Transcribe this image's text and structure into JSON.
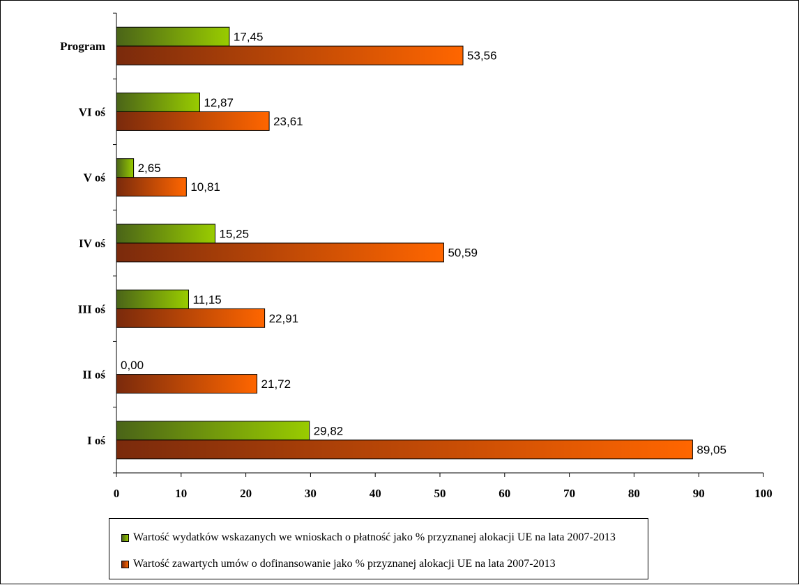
{
  "chart_data": {
    "type": "bar",
    "orientation": "horizontal",
    "categories": [
      "Program",
      "VI oś",
      "V oś",
      "IV oś",
      "III oś",
      "II oś",
      "I oś"
    ],
    "series": [
      {
        "name": "Wartość wydatków wskazanych we wnioskach o płatność jako % przyznanej alokacji UE na lata 2007-2013",
        "values": [
          17.45,
          12.87,
          2.65,
          15.25,
          11.15,
          0.0,
          29.82
        ],
        "labels": [
          "17,45",
          "12,87",
          "2,65",
          "15,25",
          "11,15",
          "0,00",
          "29,82"
        ],
        "color_start": "#4a6418",
        "color_end": "#99cc00"
      },
      {
        "name": "Wartość zawartych umów o dofinansowanie jako % przyznanej alokacji UE na lata 2007-2013",
        "values": [
          53.56,
          23.61,
          10.81,
          50.59,
          22.91,
          21.72,
          89.05
        ],
        "labels": [
          "53,56",
          "23,61",
          "10,81",
          "50,59",
          "22,91",
          "21,72",
          "89,05"
        ],
        "color_start": "#7a2a0c",
        "color_end": "#ff6600"
      }
    ],
    "xlim": [
      0,
      100
    ],
    "xticks": [
      0,
      10,
      20,
      30,
      40,
      50,
      60,
      70,
      80,
      90,
      100
    ],
    "title": "",
    "xlabel": "",
    "ylabel": "",
    "grid": false,
    "legend_position": "bottom"
  }
}
